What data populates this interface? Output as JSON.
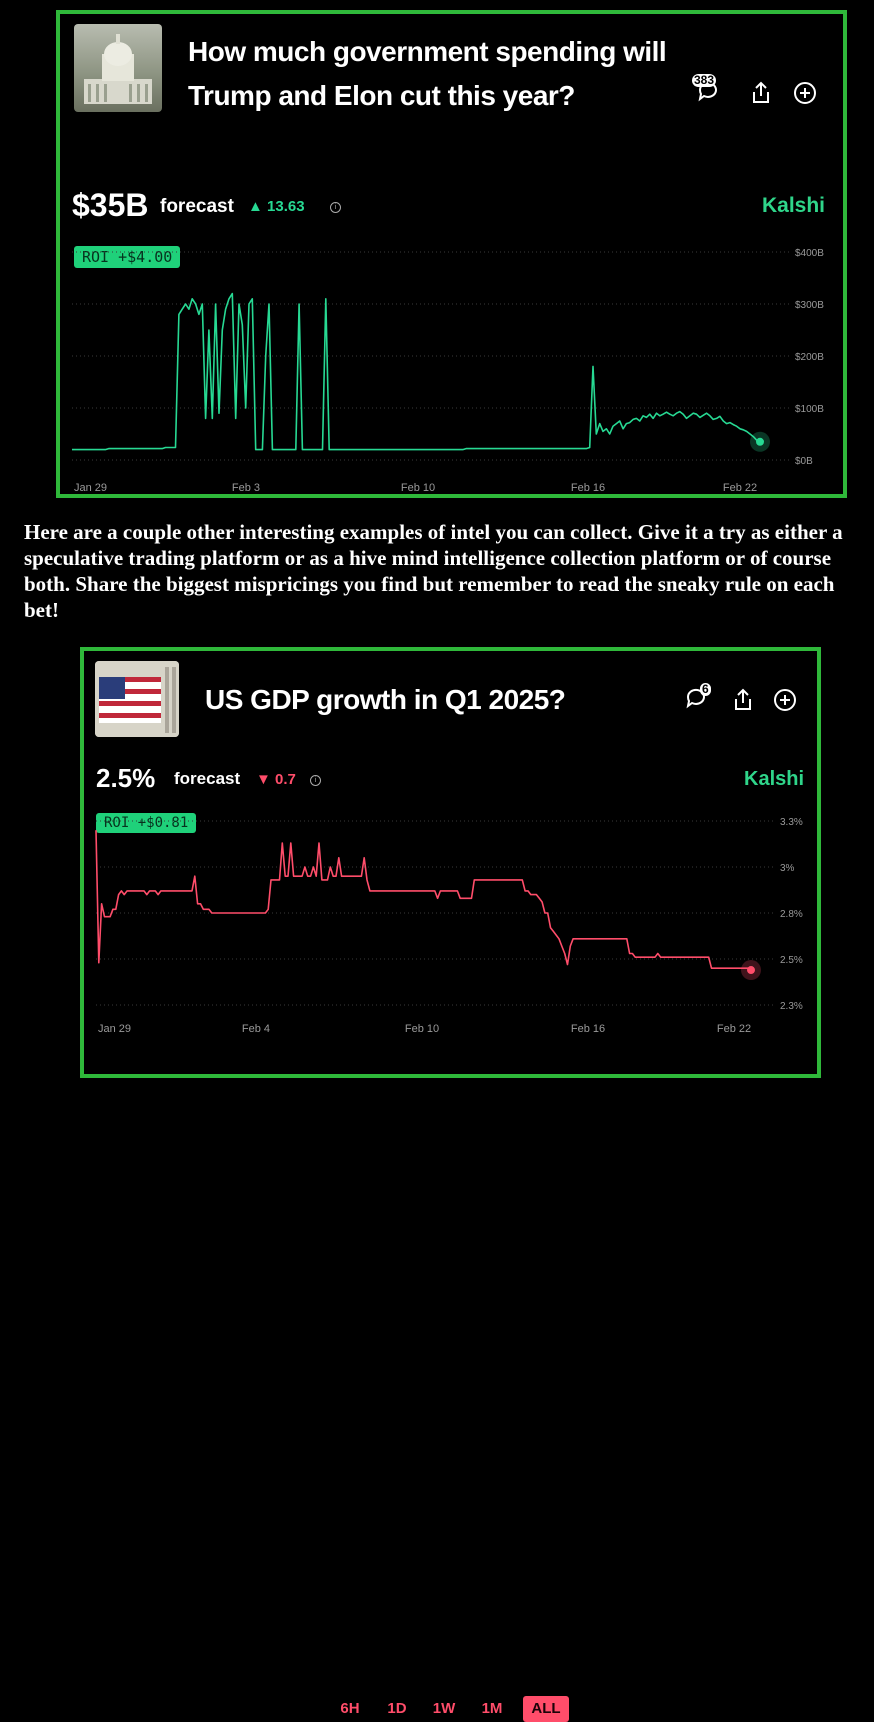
{
  "card1": {
    "title": "How much government spending will Trump and Elon cut this year?",
    "comment_count": "383",
    "forecast_value": "$35B",
    "forecast_label": "forecast",
    "change": "▲ 13.63",
    "brand": "Kalshi",
    "roi": "ROI +$4.00",
    "colors": {
      "line": "#27d993",
      "up": "#27d993"
    },
    "chart_data": {
      "type": "line",
      "x_ticks": [
        "Jan 29",
        "Feb 3",
        "Feb 10",
        "Feb 16",
        "Feb 22"
      ],
      "y_ticks": [
        "$400B",
        "$300B",
        "$200B",
        "$100B",
        "$0B"
      ],
      "ylim": [
        0,
        400
      ],
      "series": [
        {
          "values": [
            20,
            20,
            20,
            20,
            20,
            20,
            20,
            20,
            20,
            20,
            20,
            22,
            22,
            22,
            22,
            22,
            22,
            22,
            22,
            22,
            22,
            22,
            22,
            22,
            22,
            22,
            22,
            22,
            24,
            24,
            24,
            24,
            280,
            290,
            300,
            290,
            310,
            300,
            280,
            300,
            80,
            250,
            80,
            300,
            90,
            250,
            290,
            310,
            320,
            80,
            300,
            260,
            100,
            300,
            310,
            20,
            20,
            20,
            200,
            300,
            20,
            20,
            20,
            20,
            20,
            20,
            20,
            20,
            300,
            20,
            20,
            20,
            20,
            20,
            20,
            20,
            310,
            20,
            20,
            20,
            20,
            20,
            20,
            20,
            20,
            20,
            20,
            20,
            20,
            20,
            20,
            20,
            20,
            20,
            20,
            20,
            20,
            20,
            20,
            20,
            20,
            20,
            20,
            20,
            20,
            20,
            20,
            20,
            20,
            20,
            20,
            20,
            20,
            20,
            20,
            20,
            20,
            20,
            22,
            22,
            22,
            22,
            22,
            22,
            22,
            22,
            22,
            22,
            22,
            22,
            22,
            22,
            22,
            22,
            22,
            22,
            22,
            22,
            22,
            22,
            22,
            22,
            22,
            22,
            22,
            22,
            22,
            22,
            22,
            22,
            22,
            22,
            22,
            22,
            22,
            24,
            180,
            50,
            70,
            55,
            60,
            50,
            65,
            70,
            75,
            60,
            70,
            72,
            78,
            80,
            75,
            85,
            82,
            88,
            80,
            90,
            85,
            88,
            92,
            88,
            85,
            90,
            93,
            88,
            80,
            85,
            90,
            88,
            82,
            86,
            90,
            85,
            78,
            80,
            84,
            75,
            70,
            72,
            68,
            65,
            60,
            58,
            55,
            50,
            45,
            38,
            35
          ]
        }
      ]
    }
  },
  "paragraph": "Here are a couple other interesting examples of intel you can collect. Give it a try as either a speculative trading platform or as a hive mind intelligence collection platform or of course both. Share the biggest mispricings you find but remember to read the sneaky rule on each bet!",
  "card2": {
    "title": "US GDP growth in Q1 2025?",
    "comment_count": "6",
    "forecast_value": "2.5%",
    "forecast_label": "forecast",
    "change": "▼ 0.7",
    "brand": "Kalshi",
    "roi": "ROI +$0.81",
    "colors": {
      "line": "#ff4d6a",
      "down": "#ff4d6a"
    },
    "chart_data": {
      "type": "line",
      "x_ticks": [
        "Jan 29",
        "Feb 4",
        "Feb 10",
        "Feb 16",
        "Feb 22"
      ],
      "y_ticks": [
        "3.3%",
        "3%",
        "2.8%",
        "2.5%",
        "2.3%"
      ],
      "ylim": [
        2.3,
        3.3
      ],
      "series": [
        {
          "values": [
            3.25,
            2.53,
            2.85,
            2.78,
            2.78,
            2.78,
            2.82,
            2.82,
            2.9,
            2.92,
            2.9,
            2.92,
            2.92,
            2.92,
            2.92,
            2.92,
            2.92,
            2.92,
            2.9,
            2.92,
            2.92,
            2.92,
            2.9,
            2.92,
            2.92,
            2.92,
            2.92,
            2.92,
            2.92,
            2.92,
            2.92,
            2.92,
            2.92,
            2.92,
            2.92,
            3.0,
            2.85,
            2.85,
            2.82,
            2.82,
            2.82,
            2.8,
            2.8,
            2.8,
            2.8,
            2.8,
            2.8,
            2.8,
            2.8,
            2.8,
            2.8,
            2.8,
            2.8,
            2.8,
            2.8,
            2.8,
            2.8,
            2.8,
            2.8,
            2.8,
            2.8,
            2.82,
            2.98,
            2.98,
            2.98,
            2.98,
            3.18,
            3.0,
            3.0,
            3.18,
            3.0,
            3.0,
            3.0,
            3.0,
            3.05,
            3.0,
            3.0,
            3.05,
            3.0,
            3.18,
            2.98,
            2.98,
            2.98,
            3.05,
            3.0,
            3.0,
            3.1,
            3.0,
            3.0,
            3.0,
            3.0,
            3.0,
            3.0,
            3.0,
            3.0,
            3.1,
            2.98,
            2.92,
            2.92,
            2.92,
            2.92,
            2.92,
            2.92,
            2.92,
            2.92,
            2.92,
            2.92,
            2.92,
            2.92,
            2.92,
            2.92,
            2.92,
            2.92,
            2.92,
            2.92,
            2.92,
            2.92,
            2.92,
            2.92,
            2.92,
            2.92,
            2.88,
            2.92,
            2.92,
            2.92,
            2.92,
            2.92,
            2.92,
            2.92,
            2.88,
            2.88,
            2.88,
            2.88,
            2.88,
            2.98,
            2.98,
            2.98,
            2.98,
            2.98,
            2.98,
            2.98,
            2.98,
            2.98,
            2.98,
            2.98,
            2.98,
            2.98,
            2.98,
            2.98,
            2.98,
            2.98,
            2.98,
            2.92,
            2.92,
            2.9,
            2.9,
            2.9,
            2.88,
            2.86,
            2.8,
            2.8,
            2.72,
            2.7,
            2.68,
            2.66,
            2.62,
            2.58,
            2.52,
            2.62,
            2.66,
            2.66,
            2.66,
            2.66,
            2.66,
            2.66,
            2.66,
            2.66,
            2.66,
            2.66,
            2.66,
            2.66,
            2.66,
            2.66,
            2.66,
            2.66,
            2.66,
            2.66,
            2.66,
            2.66,
            2.58,
            2.58,
            2.56,
            2.56,
            2.56,
            2.56,
            2.56,
            2.56,
            2.56,
            2.56,
            2.58,
            2.56,
            2.56,
            2.56,
            2.56,
            2.56,
            2.56,
            2.56,
            2.56,
            2.56,
            2.56,
            2.56,
            2.56,
            2.56,
            2.56,
            2.56,
            2.56,
            2.56,
            2.56,
            2.5,
            2.5,
            2.5,
            2.5,
            2.5,
            2.5,
            2.5,
            2.5,
            2.5,
            2.5,
            2.5,
            2.5,
            2.5,
            2.5,
            2.49
          ]
        }
      ]
    },
    "ranges": [
      "6H",
      "1D",
      "1W",
      "1M",
      "ALL"
    ],
    "active_range": "ALL"
  }
}
